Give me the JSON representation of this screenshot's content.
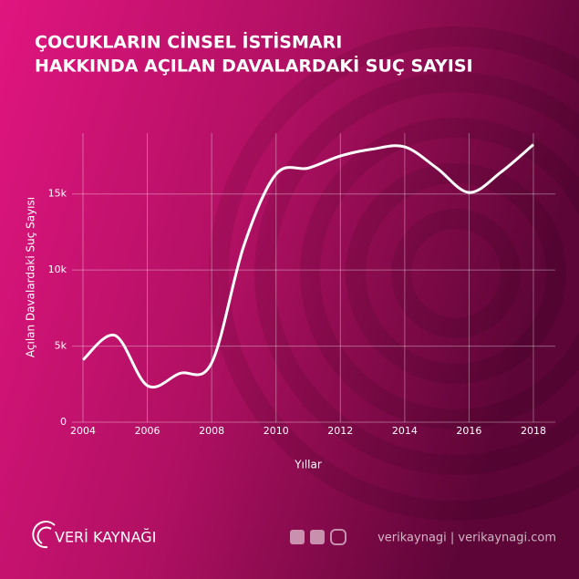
{
  "chart_data": {
    "type": "line",
    "title": [
      "ÇOCUKLARIN CİNSEL İSTİSMARI",
      "HAKKINDA AÇILAN DAVALARDAKİ SUÇ SAYISI"
    ],
    "x_label": "Yıllar",
    "y_label": "Açılan Davalardaki Suç Sayısı",
    "x": [
      2004,
      2005,
      2006,
      2007,
      2008,
      2009,
      2010,
      2011,
      2012,
      2013,
      2014,
      2015,
      2016,
      2017,
      2018
    ],
    "series": [
      {
        "color": "#ffffff",
        "values": [
          4100,
          5700,
          2400,
          3200,
          3900,
          11600,
          16300,
          16700,
          17500,
          17950,
          18100,
          16700,
          15100,
          16450,
          18250
        ]
      }
    ],
    "xlim": [
      2004,
      2018
    ],
    "xticks": [
      2004,
      2006,
      2008,
      2010,
      2012,
      2014,
      2016,
      2018
    ],
    "ylim": [
      0,
      19000
    ],
    "yticks": [
      0,
      {
        "value": 5000,
        "label": "5k"
      },
      {
        "value": 10000,
        "label": "10k"
      },
      {
        "value": 15000,
        "label": "15k"
      }
    ],
    "grid": true
  },
  "footer": {
    "brand": "VERİ KAYNAĞI",
    "links": "verikaynagi | verikaynagi.com"
  }
}
